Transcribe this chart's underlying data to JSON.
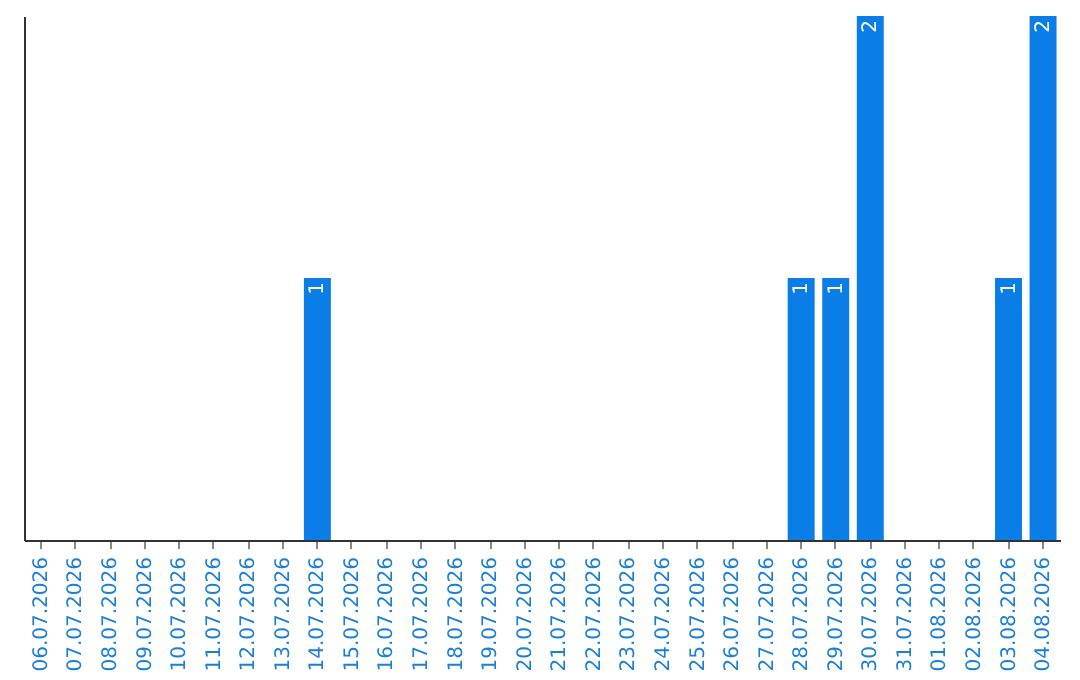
{
  "chart_data": {
    "type": "bar",
    "categories": [
      "06.07.2026",
      "07.07.2026",
      "08.07.2026",
      "09.07.2026",
      "10.07.2026",
      "11.07.2026",
      "12.07.2026",
      "13.07.2026",
      "14.07.2026",
      "15.07.2026",
      "16.07.2026",
      "17.07.2026",
      "18.07.2026",
      "19.07.2026",
      "20.07.2026",
      "21.07.2026",
      "22.07.2026",
      "23.07.2026",
      "24.07.2026",
      "25.07.2026",
      "26.07.2026",
      "27.07.2026",
      "28.07.2026",
      "29.07.2026",
      "30.07.2026",
      "31.07.2026",
      "01.08.2026",
      "02.08.2026",
      "03.08.2026",
      "04.08.2026"
    ],
    "values": [
      0,
      0,
      0,
      0,
      0,
      0,
      0,
      0,
      1,
      0,
      0,
      0,
      0,
      0,
      0,
      0,
      0,
      0,
      0,
      0,
      0,
      0,
      1,
      1,
      2,
      0,
      0,
      0,
      1,
      2
    ],
    "value_labels": [
      null,
      null,
      null,
      null,
      null,
      null,
      null,
      null,
      "1",
      null,
      null,
      null,
      null,
      null,
      null,
      null,
      null,
      null,
      null,
      null,
      null,
      null,
      "1",
      "1",
      "2",
      null,
      null,
      null,
      "1",
      "2"
    ],
    "color": "#0a7de6",
    "ylim": [
      0,
      2
    ],
    "tick_labels": "x",
    "grid": false
  }
}
